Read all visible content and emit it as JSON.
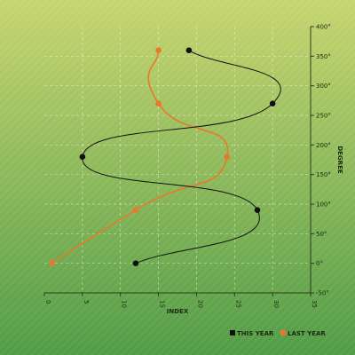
{
  "colors": {
    "bg_top": "#c7d56e",
    "bg_bottom": "#4f9b45",
    "this_year": "#111111",
    "last_year": "#e8782c",
    "grid": "#ffffff"
  },
  "chart_data": {
    "type": "line",
    "xlabel": "INDEX",
    "ylabel": "DEGREE",
    "xlim": [
      0,
      35
    ],
    "ylim": [
      -50,
      400
    ],
    "x_ticks": [
      0,
      5,
      10,
      15,
      20,
      25,
      30,
      35
    ],
    "y_ticks": [
      -50,
      0,
      50,
      100,
      150,
      200,
      250,
      300,
      350,
      400
    ],
    "y_tick_suffix": "°",
    "grid": true,
    "legend_position": "bottom-right",
    "smooth": true,
    "series": [
      {
        "name": "THIS YEAR",
        "color": "#111111",
        "points": [
          [
            12,
            0
          ],
          [
            28,
            90
          ],
          [
            5,
            180
          ],
          [
            30,
            270
          ],
          [
            19,
            360
          ]
        ]
      },
      {
        "name": "LAST YEAR",
        "color": "#e8782c",
        "points": [
          [
            1,
            0
          ],
          [
            12,
            90
          ],
          [
            24,
            180
          ],
          [
            15,
            270
          ],
          [
            15,
            360
          ]
        ]
      }
    ]
  }
}
